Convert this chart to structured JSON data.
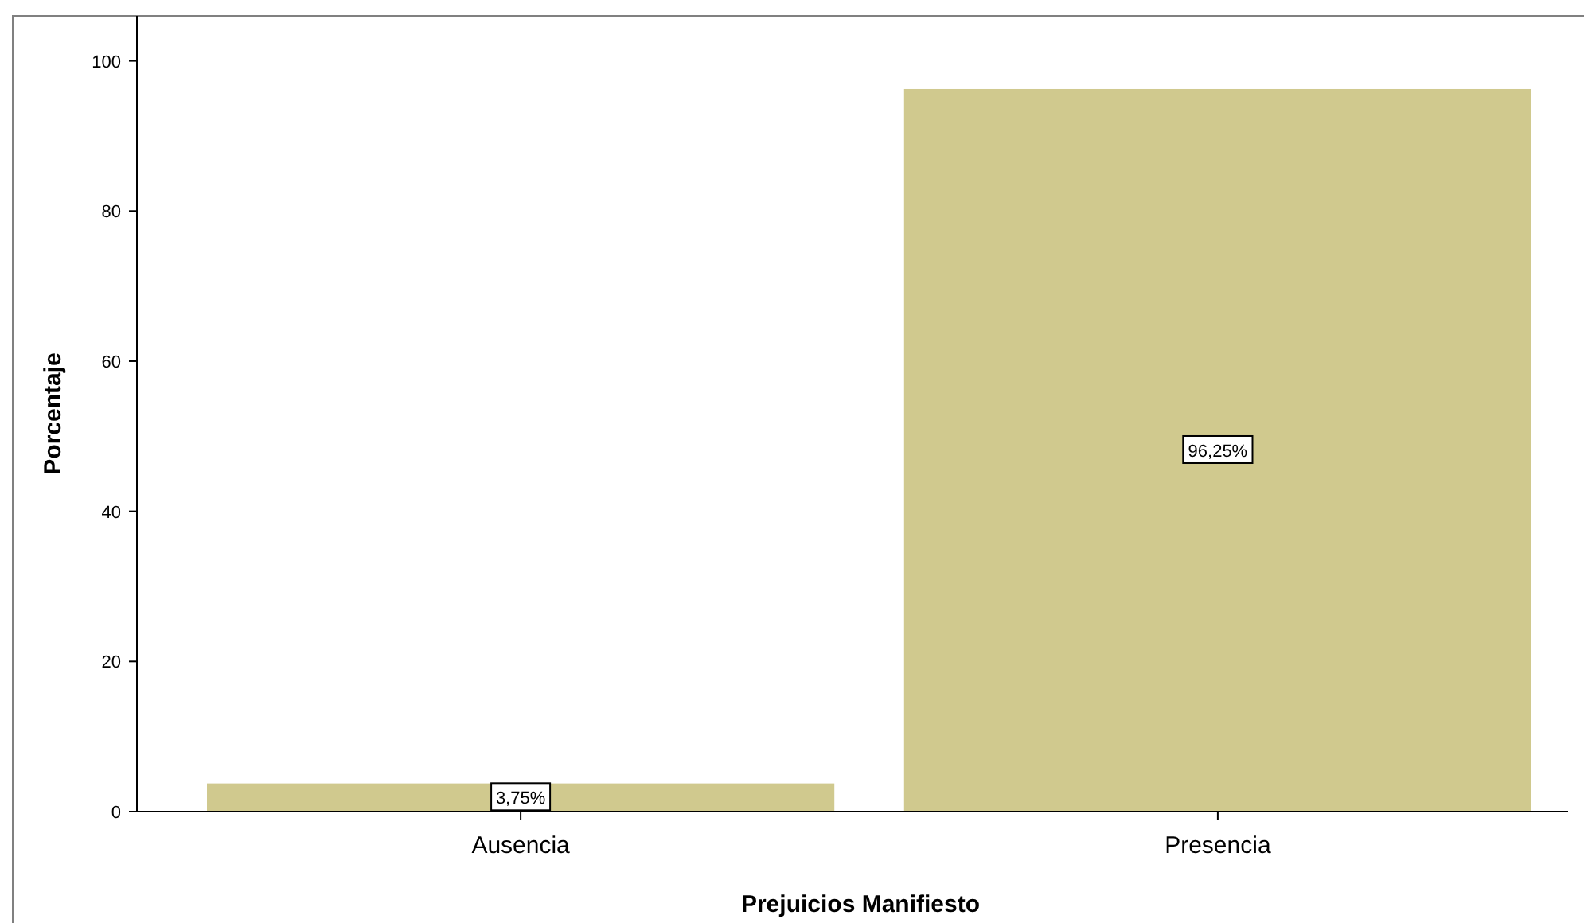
{
  "chart_data": {
    "type": "bar",
    "xlabel": "Prejuicios Manifiesto",
    "ylabel": "Porcentaje",
    "categories": [
      "Ausencia",
      "Presencia"
    ],
    "series": [
      {
        "color": "#d0c98e",
        "values": [
          3.75,
          96.25
        ],
        "value_labels": [
          "3,75%",
          "96,25%"
        ]
      }
    ],
    "ylim": [
      0,
      106
    ],
    "yticks": [
      0,
      20,
      40,
      60,
      80,
      100
    ],
    "grid": false
  }
}
